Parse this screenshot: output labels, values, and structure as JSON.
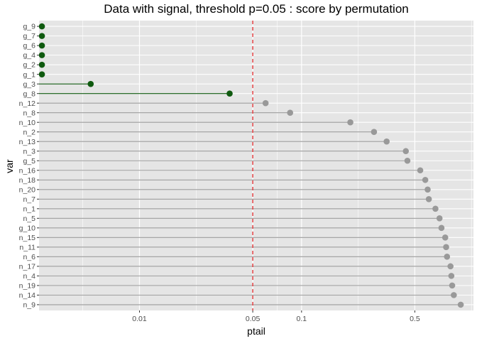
{
  "chart_data": {
    "type": "lollipop",
    "title": "Data with signal, threshold p=0.05 : score by permutation",
    "xlabel": "ptail",
    "ylabel": "var",
    "x_scale": "log10",
    "xlim": [
      0.0024,
      1.15
    ],
    "x_ticks": [
      {
        "value": 0.01,
        "label": "0.01"
      },
      {
        "value": 0.05,
        "label": "0.05"
      },
      {
        "value": 0.1,
        "label": "0.1"
      },
      {
        "value": 0.5,
        "label": "0.5"
      }
    ],
    "threshold": {
      "value": 0.05,
      "color": "#e8393b",
      "style": "dashed"
    },
    "grid": true,
    "colors": {
      "signal": "#0f5a0f",
      "noise": "#999999",
      "background": "#e5e5e5",
      "grid": "#ffffff"
    },
    "categories": [
      "g_9",
      "g_7",
      "g_6",
      "g_4",
      "g_2",
      "g_1",
      "g_3",
      "g_8",
      "n_12",
      "n_8",
      "n_10",
      "n_2",
      "n_13",
      "n_3",
      "g_5",
      "n_16",
      "n_18",
      "n_20",
      "n_7",
      "n_1",
      "n_5",
      "g_10",
      "n_15",
      "n_11",
      "n_6",
      "n_17",
      "n_4",
      "n_19",
      "n_14",
      "n_9"
    ],
    "values": [
      0.0025,
      0.0025,
      0.0025,
      0.0025,
      0.0025,
      0.0025,
      0.005,
      0.036,
      0.06,
      0.085,
      0.2,
      0.28,
      0.335,
      0.44,
      0.45,
      0.54,
      0.58,
      0.6,
      0.61,
      0.67,
      0.71,
      0.73,
      0.77,
      0.78,
      0.79,
      0.83,
      0.84,
      0.85,
      0.87,
      0.96
    ],
    "group": [
      "signal",
      "signal",
      "signal",
      "signal",
      "signal",
      "signal",
      "signal",
      "signal",
      "noise",
      "noise",
      "noise",
      "noise",
      "noise",
      "noise",
      "noise",
      "noise",
      "noise",
      "noise",
      "noise",
      "noise",
      "noise",
      "noise",
      "noise",
      "noise",
      "noise",
      "noise",
      "noise",
      "noise",
      "noise",
      "noise"
    ]
  }
}
